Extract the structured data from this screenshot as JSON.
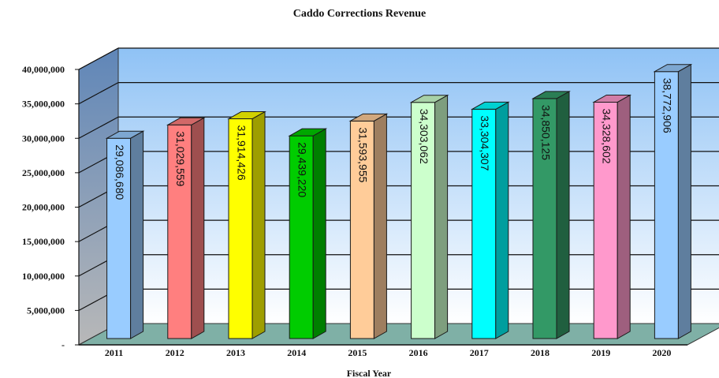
{
  "chart_data": {
    "type": "bar",
    "title": "Caddo Corrections Revenue",
    "xlabel": "Fiscal Year",
    "ylabel": "",
    "ylim": [
      0,
      40000000
    ],
    "yticks": [
      0,
      5000000,
      10000000,
      15000000,
      20000000,
      25000000,
      30000000,
      35000000,
      40000000
    ],
    "ytick_labels": [
      "-",
      "5,000,000",
      "10,000,000",
      "15,000,000",
      "20,000,000",
      "25,000,000",
      "30,000,000",
      "35,000,000",
      "40,000,000"
    ],
    "categories": [
      "2011",
      "2012",
      "2013",
      "2014",
      "2015",
      "2016",
      "2017",
      "2018",
      "2019",
      "2020"
    ],
    "values": [
      29086680,
      31029559,
      31914426,
      29439220,
      31593955,
      34303062,
      33304307,
      34850125,
      34328602,
      38772906
    ],
    "value_labels": [
      "29,086,680",
      "31,029,559",
      "31,914,426",
      "29,439,220",
      "31,593,955",
      "34,303,062",
      "33,304,307",
      "34,850,125",
      "34,328,602",
      "38,772,906"
    ],
    "bar_colors": [
      "#99ccff",
      "#ff7f7f",
      "#ffff00",
      "#00cc00",
      "#ffcc99",
      "#ccffcc",
      "#00ffff",
      "#339966",
      "#ff99cc",
      "#99ccff"
    ],
    "grid": true,
    "legend": "none",
    "style": "3d"
  }
}
